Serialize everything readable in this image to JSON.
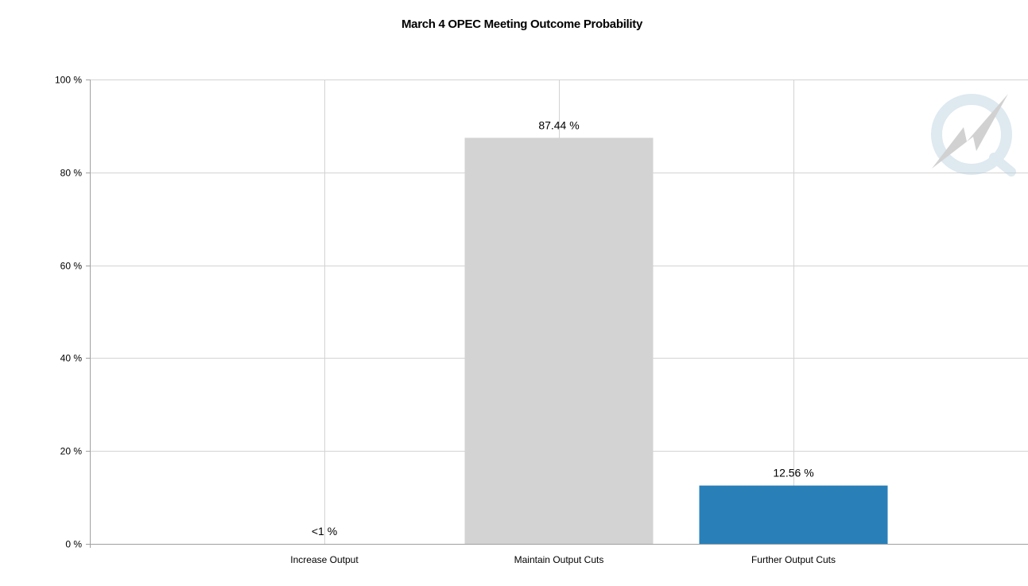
{
  "chart_data": {
    "type": "bar",
    "title": "March 4 OPEC Meeting Outcome Probability",
    "categories": [
      "Increase Output",
      "Maintain Output Cuts",
      "Further Output Cuts"
    ],
    "values": [
      0.0,
      87.44,
      12.56
    ],
    "data_labels": [
      "<1 %",
      "87.44 %",
      "12.56 %"
    ],
    "bar_colors": [
      "#2980b9",
      "#d3d3d3",
      "#2980b9"
    ],
    "ylim": [
      0,
      100
    ],
    "yticks": [
      0,
      20,
      40,
      60,
      80,
      100
    ],
    "ytick_labels": [
      "0 %",
      "20 %",
      "40 %",
      "60 %",
      "80 %",
      "100 %"
    ],
    "grid": true,
    "watermark": "lightning-q-logo"
  }
}
